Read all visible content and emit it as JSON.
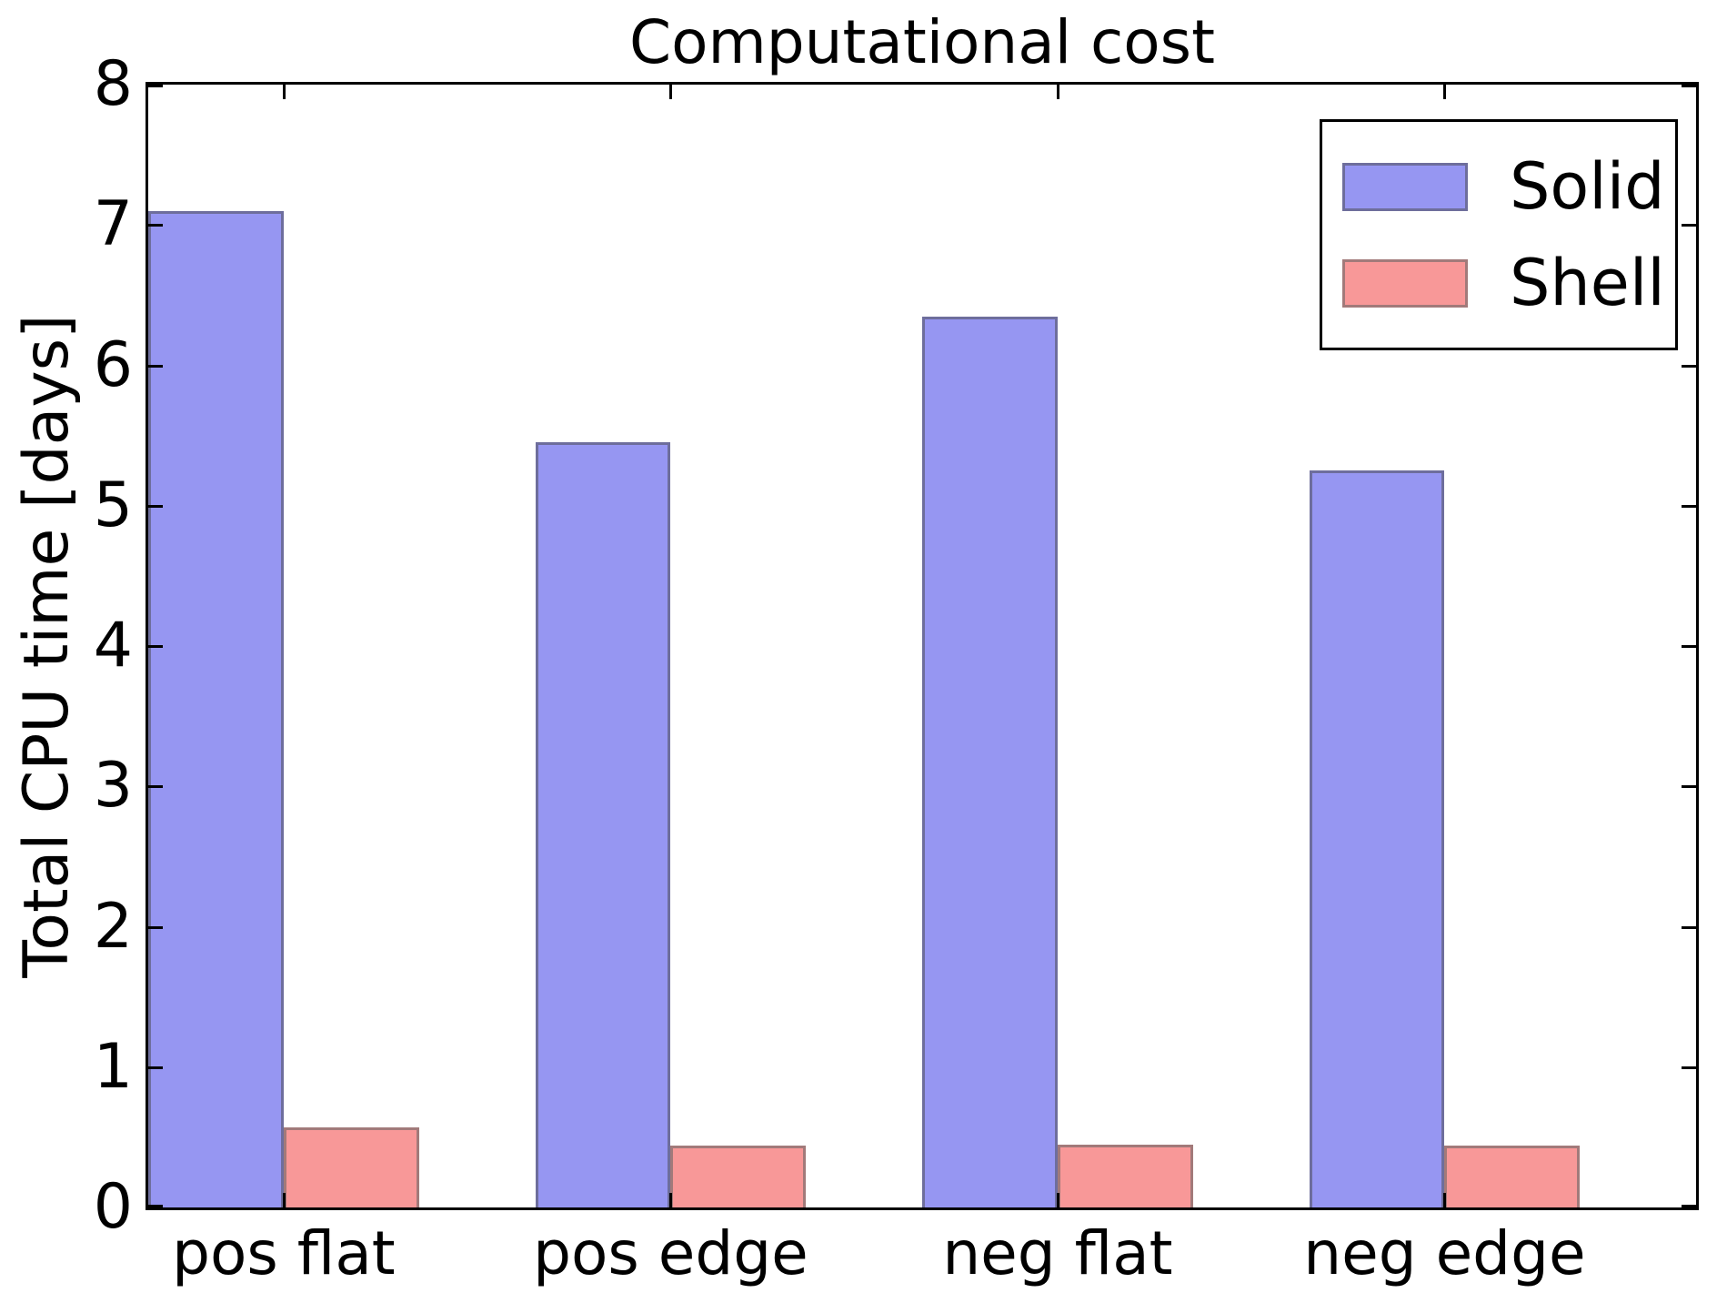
{
  "chart_data": {
    "type": "bar",
    "title": "Computational cost",
    "xlabel": "",
    "ylabel": "Total CPU time [days]",
    "categories": [
      "pos flat",
      "pos edge",
      "neg flat",
      "neg edge"
    ],
    "series": [
      {
        "name": "Solid",
        "color": "#9696f2",
        "edge_color": "#6e6e9c",
        "values": [
          7.1,
          5.45,
          6.35,
          5.25
        ]
      },
      {
        "name": "Shell",
        "color": "#f89898",
        "edge_color": "#a27a7a",
        "values": [
          0.57,
          0.44,
          0.45,
          0.44
        ]
      }
    ],
    "ylim": [
      0,
      8
    ],
    "xlim": [
      0,
      4
    ],
    "bar_width": 0.35,
    "yticks": [
      0,
      1,
      2,
      3,
      4,
      5,
      6,
      7,
      8
    ],
    "grid": false,
    "legend_position": "upper right",
    "tick_direction": "in"
  }
}
